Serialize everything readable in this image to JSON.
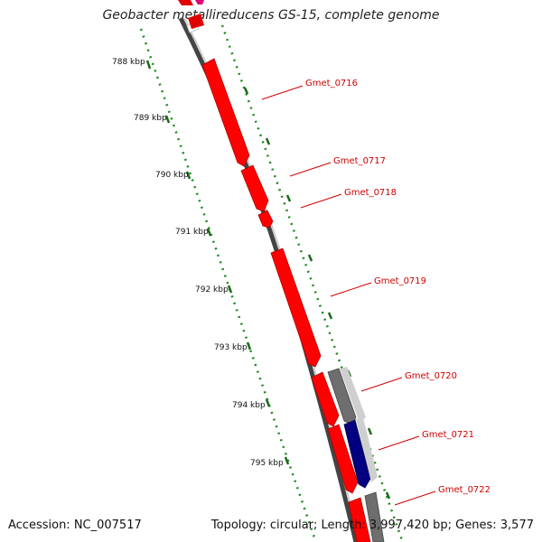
{
  "title": "Geobacter metallireducens GS-15, complete genome",
  "accession": "Accession: NC_007517",
  "topology": "Topology: circular; Length: 3,997,420 bp; Genes: 3,577",
  "colors": {
    "backbone": "#7a7a7a",
    "forward_gene": "#ff0000",
    "other_gene": "#6a6a6a",
    "rna_gene": "#000080",
    "tick": "#1a6a1a",
    "label": "#d00000"
  },
  "ruler": [
    {
      "label": "788 kbp"
    },
    {
      "label": "789 kbp"
    },
    {
      "label": "790 kbp"
    },
    {
      "label": "791 kbp"
    },
    {
      "label": "792 kbp"
    },
    {
      "label": "793 kbp"
    },
    {
      "label": "794 kbp"
    },
    {
      "label": "795 kbp"
    }
  ],
  "genes": [
    {
      "name": "Gmet_0716"
    },
    {
      "name": "Gmet_0717"
    },
    {
      "name": "Gmet_0718"
    },
    {
      "name": "Gmet_0719"
    },
    {
      "name": "Gmet_0720"
    },
    {
      "name": "Gmet_0721"
    },
    {
      "name": "Gmet_0722"
    }
  ]
}
